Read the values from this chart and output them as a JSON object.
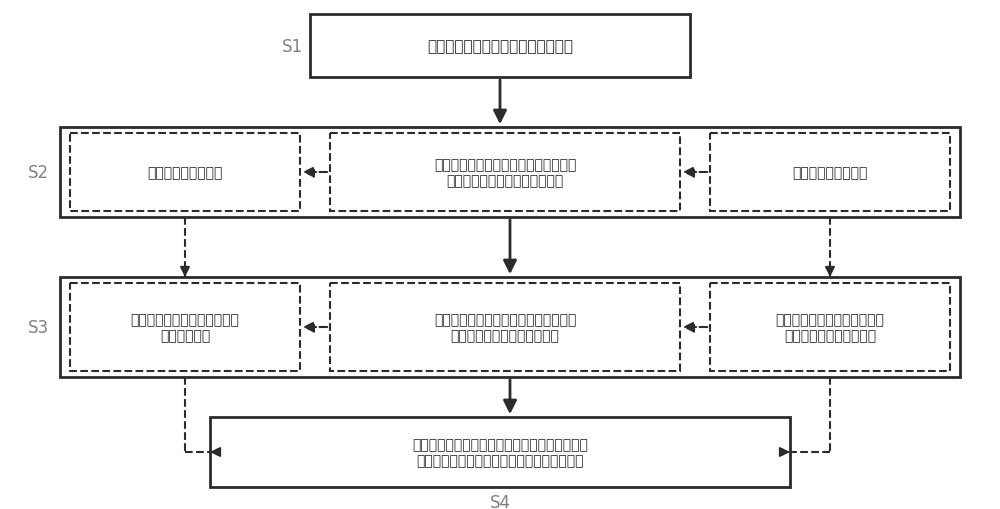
{
  "bg_color": "#ffffff",
  "line_color": "#2b2b2b",
  "dashed_color": "#2b2b2b",
  "text_color": "#2b2b2b",
  "label_color": "#808080",
  "s1_label": "S1",
  "s1_text": "制作专用离心模型箱，分隔模型空间",
  "s2_label": "S2",
  "s2_left_text": "个性化离心模型试样",
  "s2_center_text": "概化填方工程断面，确定关键模拟位置\n和试验参数，制作离心模型试样",
  "s2_right_text": "共性化离心模型试样",
  "s3_label": "S3",
  "s3_left_text": "基于实体工程关键位置处的沉\n降模拟与预测",
  "s3_center_text": "制定离心沉降稳定标准，实施离心模型\n试验，获取离心试验沉降数据",
  "s3_right_text": "基于填土参数多样性的填方沉\n降一般性规律模拟与预测",
  "s4_label": "S4",
  "s4_text": "换算原型数据，绘制散点集群，拟合生成三维空\n间本构曲面，插值计算任意工况的参数与变量"
}
